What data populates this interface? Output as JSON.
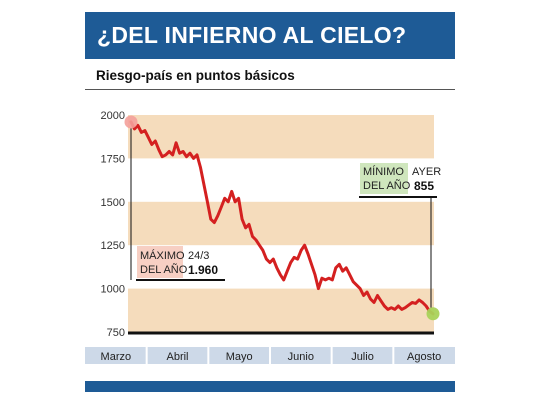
{
  "header": {
    "title": "¿DEL INFIERNO AL CIELO?",
    "subtitle": "Riesgo-país en puntos básicos"
  },
  "colors": {
    "header_bg": "#1e5b96",
    "band": "#f5dcbc",
    "line": "#d42020",
    "max_marker": "#f4a09a",
    "min_marker": "#a9d25a",
    "max_label_bg": "#f7cfc3",
    "min_label_bg": "#cfe6bd",
    "month_bar": "#cdd9e8"
  },
  "annotations": {
    "max": {
      "label_line1": "MÁXIMO",
      "label_line2": "DEL AÑO",
      "date": "24/3",
      "value": "1.960"
    },
    "min": {
      "label_line1": "MÍNIMO",
      "label_line2": "DEL AÑO",
      "date": "AYER",
      "value": "855"
    }
  },
  "chart_data": {
    "type": "line",
    "title": "¿DEL INFIERNO AL CIELO?",
    "subtitle": "Riesgo-país en puntos básicos",
    "ylim": [
      750,
      2000
    ],
    "yticks": [
      2000,
      1750,
      1500,
      1250,
      1000,
      750
    ],
    "ytick_labels": [
      "2000",
      "1750",
      "1500",
      "1250",
      "1000",
      "750"
    ],
    "months": [
      "Marzo",
      "Abril",
      "Mayo",
      "Junio",
      "Julio",
      "Agosto"
    ],
    "grid": "alternating horizontal bands",
    "series": [
      {
        "values": [
          1960,
          1920,
          1940,
          1900,
          1910,
          1870,
          1830,
          1850,
          1800,
          1760,
          1770,
          1790,
          1770,
          1840,
          1780,
          1790,
          1760,
          1780,
          1750,
          1770,
          1700,
          1600,
          1500,
          1400,
          1380,
          1420,
          1470,
          1520,
          1500,
          1560,
          1500,
          1520,
          1400,
          1350,
          1370,
          1300,
          1280,
          1250,
          1220,
          1170,
          1150,
          1170,
          1120,
          1080,
          1050,
          1100,
          1150,
          1180,
          1170,
          1220,
          1250,
          1200,
          1140,
          1080,
          1000,
          1060,
          1050,
          1060,
          1050,
          1120,
          1140,
          1100,
          1120,
          1080,
          1040,
          1020,
          1000,
          960,
          980,
          940,
          920,
          960,
          930,
          900,
          880,
          890,
          880,
          900,
          880,
          890,
          905,
          920,
          915,
          935,
          920,
          900,
          870,
          855
        ]
      }
    ],
    "max_point": {
      "date": "24/3",
      "value": 1960
    },
    "min_point": {
      "date": "AYER",
      "value": 855
    }
  }
}
